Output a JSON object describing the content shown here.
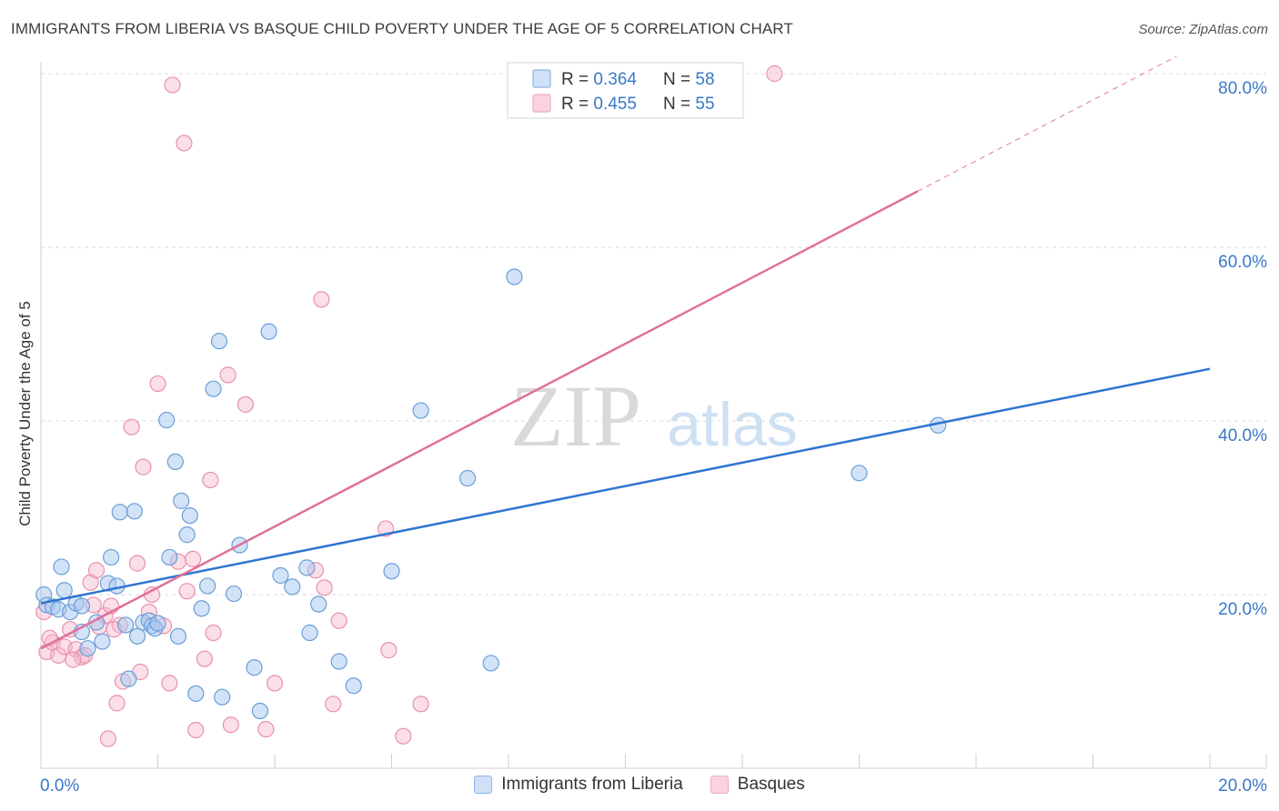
{
  "title": "IMMIGRANTS FROM LIBERIA VS BASQUE CHILD POVERTY UNDER THE AGE OF 5 CORRELATION CHART",
  "source": "Source: ZipAtlas.com",
  "watermark": {
    "zip": "ZIP",
    "atlas": "atlas"
  },
  "legend_top": [
    {
      "r_label": "R = ",
      "r_value": "0.364",
      "n_label": "N = ",
      "n_value": "58"
    },
    {
      "r_label": "R = ",
      "r_value": "0.455",
      "n_label": "N = ",
      "n_value": "55"
    }
  ],
  "colors": {
    "blue_fill": "#a8c8f0",
    "blue_stroke": "#6a9ed8",
    "blue_line": "#2f74d0",
    "pink_fill": "#f6b8cc",
    "pink_stroke": "#e890ad",
    "pink_line": "#e0709a",
    "value_text": "#3a78c8",
    "grid": "#d8d8d8"
  },
  "chart_data": {
    "type": "scatter",
    "title": "IMMIGRANTS FROM LIBERIA VS BASQUE CHILD POVERTY UNDER THE AGE OF 5 CORRELATION CHART",
    "xlabel": "",
    "ylabel": "Child Poverty Under the Age of 5",
    "xlim": [
      0,
      20
    ],
    "ylim": [
      0,
      82
    ],
    "x_tick_labels": [
      "0.0%",
      "20.0%"
    ],
    "y_tick_values": [
      20,
      40,
      60,
      80
    ],
    "y_tick_labels": [
      "20.0%",
      "40.0%",
      "60.0%",
      "80.0%"
    ],
    "grid": true,
    "legend_placement": "bottom-center",
    "series": [
      {
        "name": "Immigrants from Liberia",
        "color": "#a8c8f0",
        "trend": {
          "x": [
            0,
            20
          ],
          "y": [
            19.0,
            46.0
          ],
          "dashed_after_x": null
        },
        "points": [
          [
            0.05,
            20.0
          ],
          [
            0.1,
            18.8
          ],
          [
            0.2,
            18.6
          ],
          [
            0.3,
            18.3
          ],
          [
            0.4,
            20.5
          ],
          [
            0.5,
            18.0
          ],
          [
            0.6,
            19.0
          ],
          [
            0.7,
            18.7
          ],
          [
            0.8,
            13.8
          ],
          [
            0.35,
            23.2
          ],
          [
            0.7,
            15.7
          ],
          [
            0.95,
            16.8
          ],
          [
            1.05,
            14.6
          ],
          [
            1.15,
            21.3
          ],
          [
            1.2,
            24.3
          ],
          [
            1.3,
            21.0
          ],
          [
            1.35,
            29.5
          ],
          [
            1.45,
            16.5
          ],
          [
            1.5,
            10.3
          ],
          [
            1.6,
            29.6
          ],
          [
            1.65,
            15.2
          ],
          [
            1.75,
            16.8
          ],
          [
            1.85,
            17.0
          ],
          [
            1.9,
            16.4
          ],
          [
            1.95,
            16.1
          ],
          [
            2.0,
            16.7
          ],
          [
            2.15,
            40.1
          ],
          [
            2.2,
            24.3
          ],
          [
            2.3,
            35.3
          ],
          [
            2.35,
            15.2
          ],
          [
            2.4,
            30.8
          ],
          [
            2.5,
            26.9
          ],
          [
            2.55,
            29.1
          ],
          [
            2.65,
            8.6
          ],
          [
            2.75,
            18.4
          ],
          [
            2.85,
            21.0
          ],
          [
            2.95,
            43.7
          ],
          [
            3.05,
            49.2
          ],
          [
            3.1,
            8.2
          ],
          [
            3.3,
            20.1
          ],
          [
            3.4,
            25.7
          ],
          [
            3.65,
            11.6
          ],
          [
            3.75,
            6.6
          ],
          [
            3.9,
            50.3
          ],
          [
            4.1,
            22.2
          ],
          [
            4.3,
            20.9
          ],
          [
            4.55,
            23.1
          ],
          [
            4.6,
            15.6
          ],
          [
            4.75,
            18.9
          ],
          [
            5.1,
            12.3
          ],
          [
            5.35,
            9.5
          ],
          [
            6.0,
            22.7
          ],
          [
            6.5,
            41.2
          ],
          [
            7.3,
            33.4
          ],
          [
            7.7,
            12.1
          ],
          [
            8.1,
            56.6
          ],
          [
            14.0,
            34.0
          ],
          [
            15.35,
            39.5
          ]
        ]
      },
      {
        "name": "Basques",
        "color": "#f6b8cc",
        "trend": {
          "x": [
            0,
            20
          ],
          "y": [
            13.8,
            84.0
          ],
          "dashed_after_x": 15.0
        },
        "points": [
          [
            0.05,
            18.0
          ],
          [
            0.1,
            13.4
          ],
          [
            0.2,
            14.5
          ],
          [
            0.3,
            13.0
          ],
          [
            0.4,
            14.0
          ],
          [
            0.5,
            16.0
          ],
          [
            0.6,
            13.7
          ],
          [
            0.7,
            12.8
          ],
          [
            0.75,
            13.0
          ],
          [
            0.85,
            21.4
          ],
          [
            0.9,
            18.8
          ],
          [
            0.95,
            22.8
          ],
          [
            1.0,
            16.3
          ],
          [
            1.1,
            17.6
          ],
          [
            1.15,
            3.4
          ],
          [
            1.2,
            18.7
          ],
          [
            1.3,
            7.5
          ],
          [
            1.35,
            16.5
          ],
          [
            1.4,
            10.0
          ],
          [
            1.55,
            39.3
          ],
          [
            1.65,
            23.6
          ],
          [
            1.7,
            11.1
          ],
          [
            1.75,
            34.7
          ],
          [
            1.85,
            18.0
          ],
          [
            1.9,
            20.0
          ],
          [
            2.0,
            44.3
          ],
          [
            2.1,
            16.4
          ],
          [
            2.2,
            9.8
          ],
          [
            2.25,
            78.7
          ],
          [
            2.35,
            23.8
          ],
          [
            2.45,
            72.0
          ],
          [
            2.5,
            20.4
          ],
          [
            2.6,
            24.1
          ],
          [
            2.65,
            4.4
          ],
          [
            2.8,
            12.6
          ],
          [
            2.9,
            33.2
          ],
          [
            2.95,
            15.6
          ],
          [
            3.2,
            45.3
          ],
          [
            3.25,
            5.0
          ],
          [
            3.5,
            41.9
          ],
          [
            3.85,
            4.5
          ],
          [
            4.0,
            9.8
          ],
          [
            4.7,
            22.8
          ],
          [
            4.8,
            54.0
          ],
          [
            4.85,
            20.8
          ],
          [
            5.0,
            7.4
          ],
          [
            5.1,
            17.0
          ],
          [
            5.9,
            27.6
          ],
          [
            5.95,
            13.6
          ],
          [
            6.2,
            3.7
          ],
          [
            6.5,
            7.4
          ],
          [
            12.55,
            80.0
          ],
          [
            0.15,
            15.0
          ],
          [
            0.55,
            12.5
          ],
          [
            1.25,
            16.0
          ]
        ]
      }
    ]
  },
  "bottom_legend": [
    {
      "label": "Immigrants from Liberia"
    },
    {
      "label": "Basques"
    }
  ]
}
